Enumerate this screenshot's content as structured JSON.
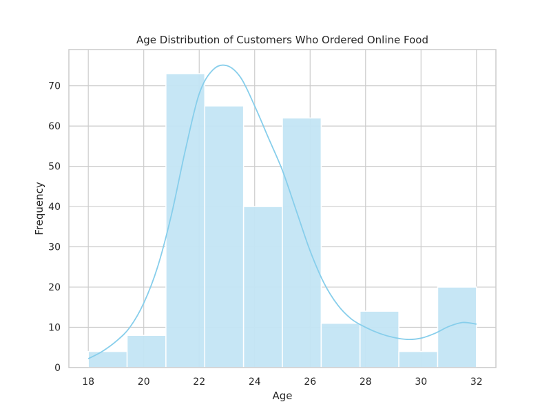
{
  "chart_data": {
    "type": "histogram",
    "title": "Age Distribution of Customers Who Ordered Online Food",
    "xlabel": "Age",
    "ylabel": "Frequency",
    "xlim": [
      17.3,
      32.7
    ],
    "ylim": [
      0,
      79
    ],
    "x_ticks": [
      18,
      20,
      22,
      24,
      26,
      28,
      30,
      32
    ],
    "y_ticks": [
      0,
      10,
      20,
      30,
      40,
      50,
      60,
      70
    ],
    "grid": true,
    "bins": [
      {
        "start": 18.0,
        "end": 19.4,
        "count": 4
      },
      {
        "start": 19.4,
        "end": 20.8,
        "count": 8
      },
      {
        "start": 20.8,
        "end": 22.2,
        "count": 73
      },
      {
        "start": 22.2,
        "end": 23.6,
        "count": 65
      },
      {
        "start": 23.6,
        "end": 25.0,
        "count": 40
      },
      {
        "start": 25.0,
        "end": 26.4,
        "count": 62
      },
      {
        "start": 26.4,
        "end": 27.8,
        "count": 11
      },
      {
        "start": 27.8,
        "end": 29.2,
        "count": 14
      },
      {
        "start": 29.2,
        "end": 30.6,
        "count": 4
      },
      {
        "start": 30.6,
        "end": 32.0,
        "count": 20
      }
    ],
    "kde": {
      "x": [
        18,
        18.5,
        19,
        19.5,
        20,
        20.5,
        21,
        21.5,
        22,
        22.5,
        23,
        23.5,
        24,
        24.5,
        25,
        25.5,
        26,
        26.5,
        27,
        27.5,
        28,
        28.5,
        29,
        29.5,
        30,
        30.5,
        31,
        31.5,
        32
      ],
      "y": [
        2.2,
        4,
        6.5,
        10,
        16,
        25,
        38,
        54,
        68,
        74,
        75,
        72,
        65,
        57,
        49,
        39,
        29,
        21,
        15.5,
        12,
        10,
        8.5,
        7.5,
        7,
        7.3,
        8.5,
        10.2,
        11.2,
        10.8
      ]
    },
    "colors": {
      "bar_fill": "#c3e5f4",
      "bar_edge": "#ffffff",
      "kde_line": "#87ceeb",
      "grid": "#cccccc",
      "axes_edge": "#cccccc",
      "background": "#ffffff"
    }
  }
}
